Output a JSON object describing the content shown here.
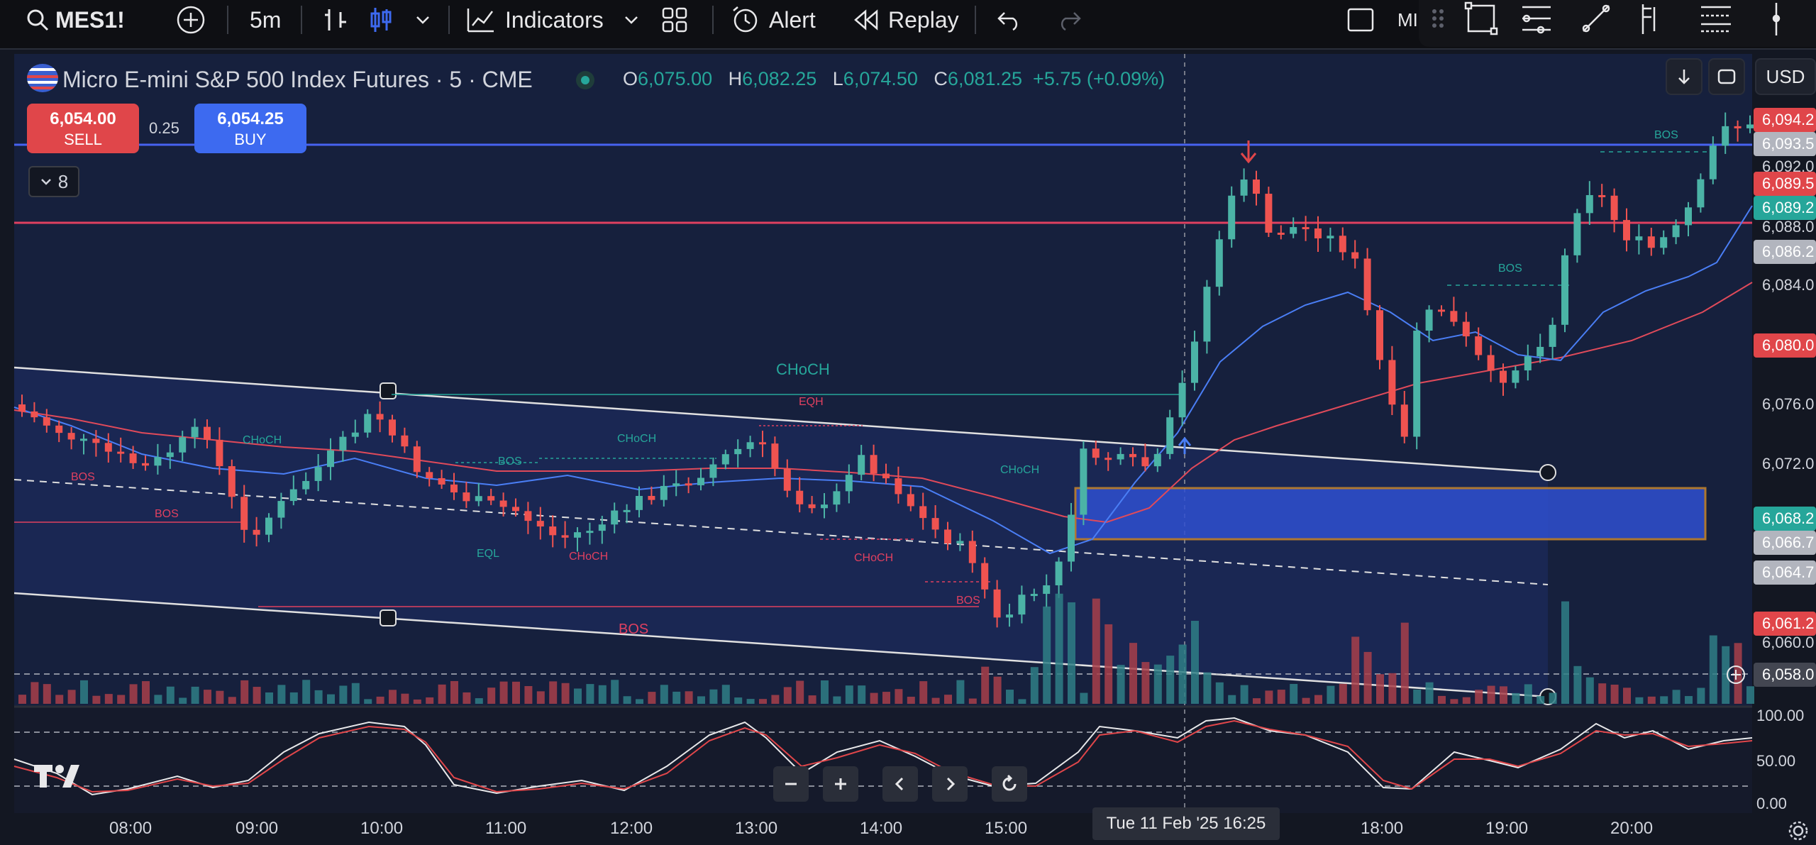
{
  "toolbar": {
    "symbol": "MES1!",
    "interval": "5m",
    "indicators_label": "Indicators",
    "alert_label": "Alert",
    "replay_label": "Replay",
    "right_cut_text": "MI"
  },
  "legend": {
    "title": "Micro E-mini S&P 500 Index Futures · 5 · CME",
    "open_key": "O",
    "open": "6,075.00",
    "high_key": "H",
    "high": "6,082.25",
    "low_key": "L",
    "low": "6,074.50",
    "close_key": "C",
    "close": "6,081.25",
    "change": "+5.75 (+0.09%)"
  },
  "trade": {
    "sell_price": "6,054.00",
    "sell_label": "SELL",
    "spread": "0.25",
    "buy_price": "6,054.25",
    "buy_label": "BUY",
    "collapse_count": "8"
  },
  "currency": "USD",
  "price_axis": {
    "labels": [
      "6,092.0",
      "6,088.0",
      "6,084.0",
      "6,076.0",
      "6,072.0",
      "6,060.0"
    ],
    "tags": [
      {
        "text": "6,094.2",
        "color": "#e0464a"
      },
      {
        "text": "6,093.5",
        "color": "#b2b5be"
      },
      {
        "text": "6,089.5",
        "color": "#e0464a"
      },
      {
        "text": "6,089.2",
        "color": "#26a69a"
      },
      {
        "text": "6,086.2",
        "color": "#b2b5be"
      },
      {
        "text": "6,080.0",
        "color": "#e0464a"
      },
      {
        "text": "6,068.2",
        "color": "#26a69a"
      },
      {
        "text": "6,066.7",
        "color": "#b2b5be"
      },
      {
        "text": "6,064.7",
        "color": "#b2b5be"
      },
      {
        "text": "6,061.2",
        "color": "#e0464a"
      },
      {
        "text": "6,058.0",
        "color": "#434651"
      }
    ]
  },
  "oscillator_axis": [
    "100.00",
    "50.00",
    "0.00"
  ],
  "time_axis": [
    "08:00",
    "09:00",
    "10:00",
    "11:00",
    "12:00",
    "13:00",
    "14:00",
    "15:00",
    "18:00",
    "19:00",
    "20:00"
  ],
  "cursor_time": "Tue 11 Feb '25   16:25",
  "annotations": {
    "choch_main": "CHoCH",
    "eqh": "EQH",
    "bos_label": "BOS",
    "choch_small": "CHoCH",
    "eql": "EQL"
  },
  "colors": {
    "background": "#131722",
    "up": "#26a69a",
    "down": "#ef5350",
    "fvg_box": "#2f4fd0",
    "box_border": "#c9872d",
    "hline_blue": "#4762f0",
    "hline_red": "#e04060"
  },
  "icons": [
    "search-icon",
    "plus-circle-icon",
    "bar-style-icon",
    "candle-style-icon",
    "chevron-down-icon",
    "indicators-icon",
    "layout-grid-icon",
    "alarm-icon",
    "replay-icon",
    "undo-icon",
    "redo-icon",
    "square-icon",
    "rectangle-tool-icon",
    "fib-tool-icon",
    "line-tool-icon",
    "pitchfork-icon",
    "channel-tool-icon",
    "vertical-line-icon"
  ]
}
